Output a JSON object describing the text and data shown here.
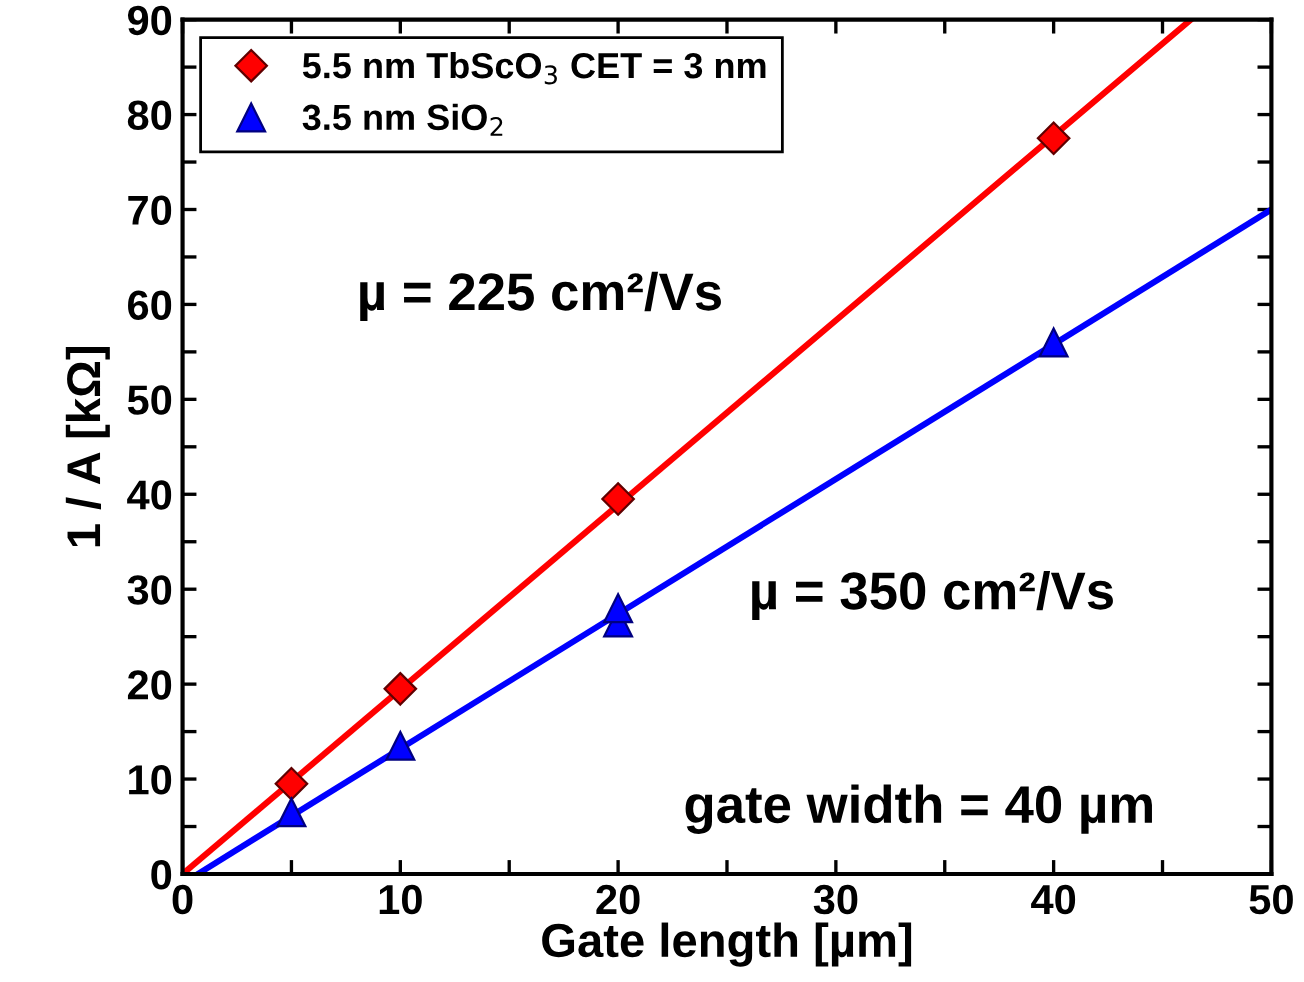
{
  "chart_data": {
    "type": "scatter",
    "xlabel": "Gate length [µm]",
    "ylabel": "1 / A [kΩ]",
    "series": [
      {
        "name": "5.5 nm TbScO$_{3}$ CET = 3 nm",
        "color": "#ff0000",
        "marker": "diamond",
        "x": [
          5,
          10,
          20,
          40
        ],
        "values": [
          9.5,
          19.5,
          39.5,
          77.5
        ]
      },
      {
        "name": "3.5 nm SiO$_{2}$",
        "color": "#0000ff",
        "marker": "triangle",
        "x": [
          5,
          10,
          20,
          20,
          40
        ],
        "values": [
          6.5,
          13.5,
          26.5,
          28,
          56
        ]
      },
      {
        "type": "line",
        "color": "#ff0000",
        "x": [
          0,
          46.3
        ],
        "values": [
          0,
          90
        ]
      },
      {
        "type": "line",
        "color": "#0000ff",
        "x": [
          0.7,
          50
        ],
        "values": [
          0,
          70
        ]
      }
    ],
    "xlim": [
      0,
      50
    ],
    "ylim": [
      0,
      90
    ],
    "xticks": [
      0,
      {
        "value": 5,
        "label": null
      },
      10,
      {
        "value": 15,
        "label": null
      },
      20,
      {
        "value": 25,
        "label": null
      },
      30,
      {
        "value": 35,
        "label": null
      },
      40,
      {
        "value": 45,
        "label": null
      },
      50
    ],
    "yticks": [
      0,
      {
        "value": 5,
        "label": null
      },
      10,
      {
        "value": 15,
        "label": null
      },
      20,
      {
        "value": 25,
        "label": null
      },
      30,
      {
        "value": 35,
        "label": null
      },
      40,
      {
        "value": 45,
        "label": null
      },
      50,
      {
        "value": 55,
        "label": null
      },
      60,
      {
        "value": 65,
        "label": null
      },
      70,
      {
        "value": 75,
        "label": null
      },
      80,
      {
        "value": 85,
        "label": null
      },
      90
    ],
    "annotations": [
      "µ = 225 cm²/Vs",
      "µ = 350 cm²/Vs",
      "gate width = 40 µm"
    ],
    "legend": "top left",
    "grid": false
  }
}
